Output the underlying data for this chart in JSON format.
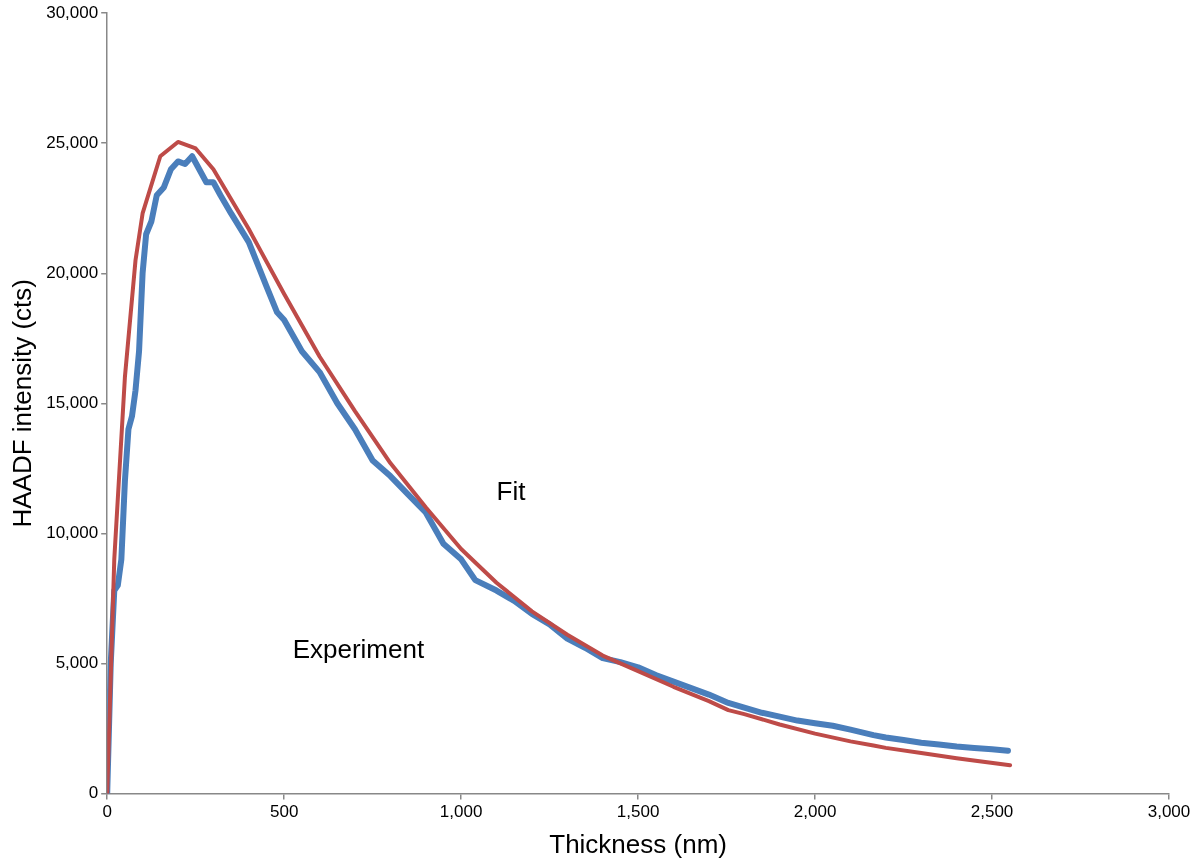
{
  "chart_data": {
    "type": "line",
    "xlabel": "Thickness (nm)",
    "ylabel": "HAADF intensity (cts)",
    "xlim": [
      0,
      3000
    ],
    "xticks": [
      0,
      {
        "value": 500,
        "label": "500"
      },
      {
        "value": 1000,
        "label": "1,000"
      },
      {
        "value": 1500,
        "label": "1,500"
      },
      {
        "value": 2000,
        "label": "2,000"
      },
      {
        "value": 2500,
        "label": "2,500"
      },
      {
        "value": 3000,
        "label": "3,000"
      }
    ],
    "ylim": [
      0,
      30000
    ],
    "yticks": [
      0,
      {
        "value": 5000,
        "label": "5,000"
      },
      {
        "value": 10000,
        "label": "10,000"
      },
      {
        "value": 15000,
        "label": "15,000"
      },
      {
        "value": 20000,
        "label": "20,000"
      },
      {
        "value": 25000,
        "label": "25,000"
      },
      {
        "value": 30000,
        "label": "30,000"
      }
    ],
    "grid": false,
    "legend": false,
    "marker": "none",
    "line_style": "solid",
    "series": [
      {
        "name": "Experiment",
        "color": "#4a7ebb",
        "x": [
          0,
          10,
          20,
          30,
          40,
          50,
          60,
          70,
          80,
          90,
          100,
          110,
          125,
          140,
          160,
          180,
          200,
          220,
          240,
          260,
          280,
          300,
          320,
          350,
          400,
          450,
          480,
          500,
          550,
          600,
          650,
          700,
          750,
          800,
          850,
          900,
          950,
          1000,
          1040,
          1100,
          1150,
          1200,
          1250,
          1300,
          1350,
          1400,
          1450,
          1500,
          1550,
          1600,
          1650,
          1700,
          1755,
          1800,
          1850,
          1900,
          1950,
          2000,
          2050,
          2100,
          2165,
          2200,
          2250,
          2300,
          2350,
          2400,
          2450,
          2500,
          2545
        ],
        "values": [
          0,
          5000,
          7800,
          8000,
          9000,
          12000,
          14000,
          14500,
          15500,
          17000,
          20000,
          21500,
          22000,
          23000,
          23300,
          24000,
          24300,
          24200,
          24500,
          24000,
          23500,
          23500,
          23000,
          22300,
          21200,
          19500,
          18500,
          18200,
          17000,
          16200,
          15000,
          14000,
          12800,
          12200,
          11500,
          10800,
          9600,
          9000,
          8200,
          7800,
          7400,
          6900,
          6500,
          5950,
          5600,
          5200,
          5050,
          4850,
          4550,
          4300,
          4050,
          3800,
          3480,
          3300,
          3100,
          2950,
          2800,
          2700,
          2600,
          2450,
          2240,
          2150,
          2050,
          1950,
          1880,
          1800,
          1750,
          1700,
          1640
        ]
      },
      {
        "name": "Fit",
        "color": "#be4b48",
        "x": [
          0,
          20,
          50,
          80,
          100,
          150,
          200,
          250,
          300,
          400,
          500,
          600,
          700,
          800,
          900,
          1000,
          1040,
          1100,
          1200,
          1300,
          1400,
          1500,
          1600,
          1700,
          1755,
          1800,
          1900,
          2000,
          2100,
          2165,
          2200,
          2300,
          2400,
          2551
        ],
        "values": [
          0,
          9000,
          16000,
          20500,
          22300,
          24500,
          25050,
          24800,
          24000,
          21700,
          19200,
          16800,
          14700,
          12700,
          11000,
          9400,
          8880,
          8100,
          7000,
          6100,
          5300,
          4700,
          4100,
          3550,
          3200,
          3050,
          2650,
          2300,
          2000,
          1840,
          1750,
          1550,
          1350,
          1080
        ]
      }
    ]
  }
}
